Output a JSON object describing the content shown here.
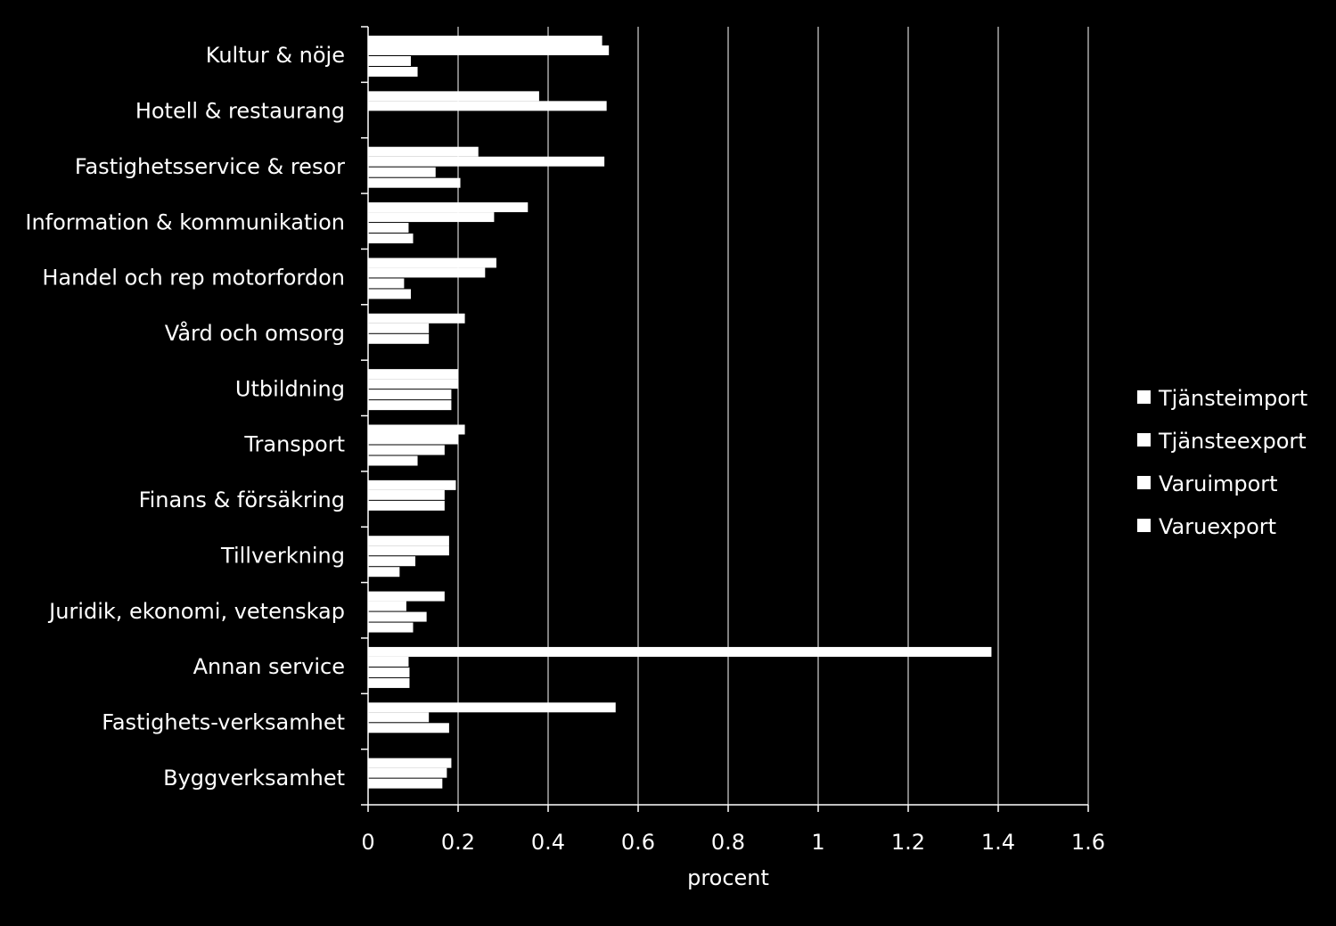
{
  "chart_data": {
    "type": "bar",
    "orientation": "horizontal",
    "xlabel": "procent",
    "xlim": [
      0,
      1.6
    ],
    "xticks": [
      0,
      0.2,
      0.4,
      0.6,
      0.8,
      1,
      1.2,
      1.4,
      1.6
    ],
    "xtick_labels": [
      "0",
      "0.2",
      "0.4",
      "0.6",
      "0.8",
      "1",
      "1.2",
      "1.4",
      "1.6"
    ],
    "grid": "vertical",
    "legend_position": "right",
    "bar_color": "#ffffff",
    "background_color": "#000000",
    "categories": [
      "Kultur & nöje",
      "Hotell & restaurang",
      "Fastighetsservice & resor",
      "Information & kommunikation",
      "Handel och rep motorfordon",
      "Vård och omsorg",
      "Utbildning",
      "Transport",
      "Finans & försäkring",
      "Tillverkning",
      "Juridik, ekonomi, vetenskap",
      "Annan service",
      "Fastighets-verksamhet",
      "Byggverksamhet"
    ],
    "series": [
      {
        "name": "Tjänsteimport",
        "values": [
          0.52,
          0.38,
          0.245,
          0.355,
          0.285,
          0.215,
          0.2,
          0.215,
          0.195,
          0.18,
          0.17,
          1.385,
          0.55,
          0.185
        ]
      },
      {
        "name": "Tjänsteexport",
        "values": [
          0.535,
          0.53,
          0.525,
          0.28,
          0.26,
          0.135,
          0.2,
          0.2,
          0.17,
          0.18,
          0.085,
          0.09,
          0.135,
          0.175
        ]
      },
      {
        "name": "Varuimport",
        "values": [
          0.095,
          0.0,
          0.15,
          0.09,
          0.08,
          0.135,
          0.185,
          0.17,
          0.17,
          0.105,
          0.13,
          0.092,
          0.18,
          0.165
        ]
      },
      {
        "name": "Varuexport",
        "values": [
          0.11,
          0.0,
          0.205,
          0.1,
          0.095,
          0.0,
          0.185,
          0.11,
          0.0,
          0.07,
          0.1,
          0.092,
          0.0,
          0.0
        ]
      }
    ]
  }
}
